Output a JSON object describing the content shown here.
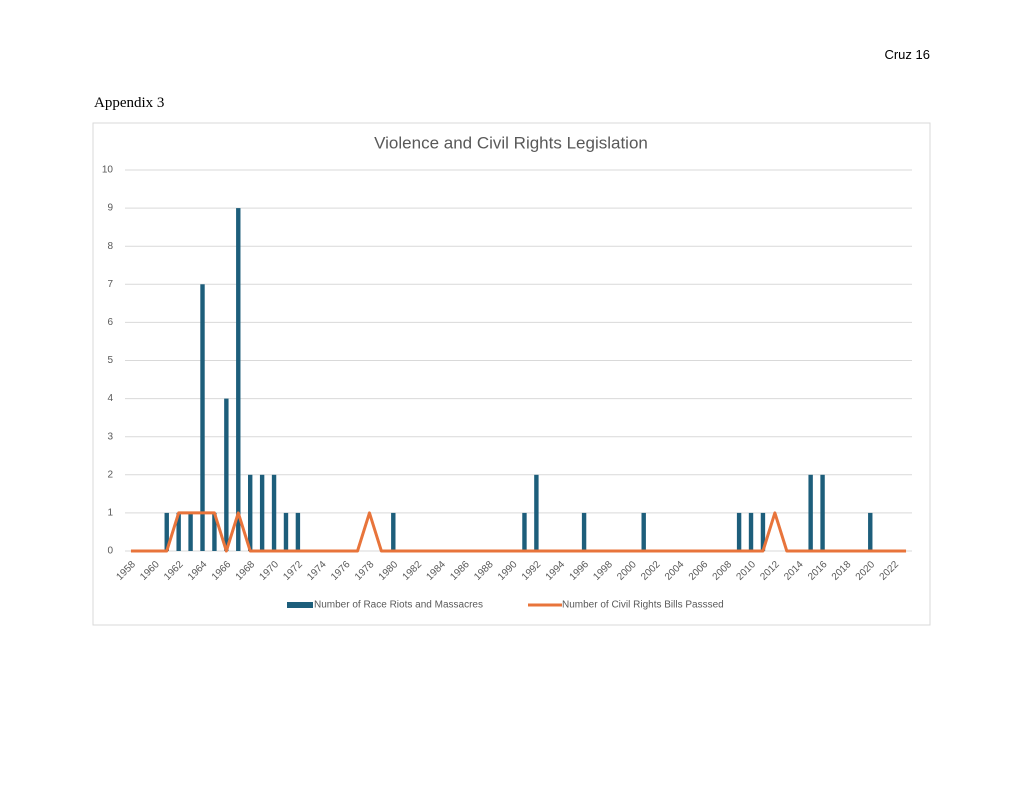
{
  "header": {
    "page": "Cruz 16"
  },
  "heading": "Appendix 3",
  "chart_data": {
    "type": "bar",
    "title": "Violence and Civil Rights Legislation",
    "categories": [
      "1958",
      null,
      "1960",
      null,
      "1962",
      null,
      "1964",
      null,
      "1966",
      null,
      "1968",
      null,
      "1970",
      null,
      "1972",
      null,
      "1974",
      null,
      "1976",
      null,
      "1978",
      null,
      "1980",
      null,
      "1982",
      null,
      "1984",
      null,
      "1986",
      null,
      "1988",
      null,
      "1990",
      null,
      "1992",
      null,
      "1994",
      null,
      "1996",
      null,
      "1998",
      null,
      "2000",
      null,
      "2002",
      null,
      "2004",
      null,
      "2006",
      null,
      "2008",
      null,
      "2010",
      null,
      "2012",
      null,
      "2014",
      null,
      "2016",
      null,
      "2018",
      null,
      "2020",
      null,
      "2022",
      null
    ],
    "series": [
      {
        "name": "Number of Race Riots and Massacres",
        "type": "bar",
        "color": "#1d5e7b",
        "values": [
          0,
          0,
          0,
          1,
          1,
          1,
          7,
          1,
          4,
          9,
          2,
          2,
          2,
          1,
          1,
          0,
          0,
          0,
          0,
          0,
          0,
          0,
          1,
          0,
          0,
          0,
          0,
          0,
          0,
          0,
          0,
          0,
          0,
          1,
          2,
          0,
          0,
          0,
          1,
          0,
          0,
          0,
          0,
          1,
          0,
          0,
          0,
          0,
          0,
          0,
          0,
          1,
          1,
          1,
          0,
          0,
          0,
          2,
          2,
          0,
          0,
          0,
          1,
          0,
          0,
          0
        ]
      },
      {
        "name": "Number of Civil Rights Bills Passsed",
        "type": "line",
        "color": "#e8743b",
        "values": [
          0,
          0,
          0,
          0,
          1,
          1,
          1,
          1,
          0,
          1,
          0,
          0,
          0,
          0,
          0,
          0,
          0,
          0,
          0,
          0,
          1,
          0,
          0,
          0,
          0,
          0,
          0,
          0,
          0,
          0,
          0,
          0,
          0,
          0,
          0,
          0,
          0,
          0,
          0,
          0,
          0,
          0,
          0,
          0,
          0,
          0,
          0,
          0,
          0,
          0,
          0,
          0,
          0,
          0,
          1,
          0,
          0,
          0,
          0,
          0,
          0,
          0,
          0,
          0,
          0,
          0
        ]
      }
    ],
    "ylim": [
      0,
      10
    ],
    "yticks": [
      0,
      1,
      2,
      3,
      4,
      5,
      6,
      7,
      8,
      9,
      10
    ],
    "grid": true,
    "legend": "bottom"
  }
}
